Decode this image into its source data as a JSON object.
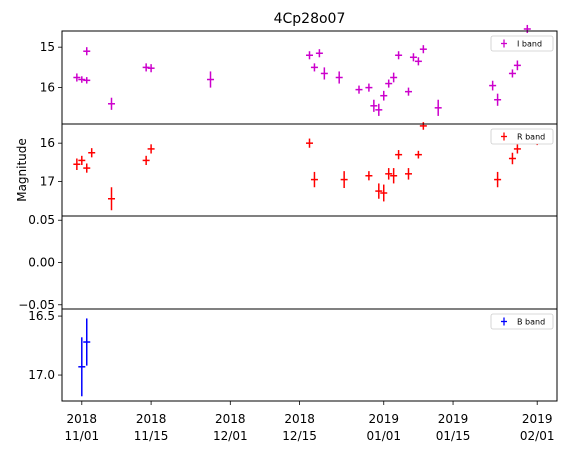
{
  "chart_data": {
    "type": "scatter",
    "title": "4Cp28o07",
    "ylabel": "Magnitude",
    "x_tick_labels": [
      {
        "date": "2018-11-01",
        "line1": "2018",
        "line2": "11/01"
      },
      {
        "date": "2018-11-15",
        "line1": "2018",
        "line2": "11/15"
      },
      {
        "date": "2018-12-01",
        "line1": "2018",
        "line2": "12/01"
      },
      {
        "date": "2018-12-15",
        "line1": "2018",
        "line2": "12/15"
      },
      {
        "date": "2019-01-01",
        "line1": "2019",
        "line2": "01/01"
      },
      {
        "date": "2019-01-15",
        "line1": "2019",
        "line2": "01/15"
      },
      {
        "date": "2019-02-01",
        "line1": "2019",
        "line2": "02/01"
      }
    ],
    "xlim": [
      "2018-10-28",
      "2019-02-05"
    ],
    "panels": [
      {
        "name": "I band",
        "color": "#cc00cc",
        "ylim": [
          16.9,
          14.6
        ],
        "inverted": true,
        "y_ticks": [
          15,
          16
        ],
        "y_tick_labels": [
          "15",
          "16"
        ],
        "legend": "upper right",
        "points": [
          {
            "x": "2018-10-31",
            "y": 15.75,
            "yerr": 0.1
          },
          {
            "x": "2018-11-01",
            "y": 15.8,
            "yerr": 0.08
          },
          {
            "x": "2018-11-02",
            "y": 15.82,
            "yerr": 0.08
          },
          {
            "x": "2018-11-02",
            "y": 15.1,
            "yerr": 0.1
          },
          {
            "x": "2018-11-07",
            "y": 16.4,
            "yerr": 0.15
          },
          {
            "x": "2018-11-14",
            "y": 15.5,
            "yerr": 0.1
          },
          {
            "x": "2018-11-15",
            "y": 15.52,
            "yerr": 0.1
          },
          {
            "x": "2018-11-27",
            "y": 15.8,
            "yerr": 0.2
          },
          {
            "x": "2018-12-17",
            "y": 15.2,
            "yerr": 0.1
          },
          {
            "x": "2018-12-18",
            "y": 15.5,
            "yerr": 0.1
          },
          {
            "x": "2018-12-19",
            "y": 15.15,
            "yerr": 0.1
          },
          {
            "x": "2018-12-20",
            "y": 15.65,
            "yerr": 0.15
          },
          {
            "x": "2018-12-23",
            "y": 15.75,
            "yerr": 0.15
          },
          {
            "x": "2018-12-27",
            "y": 16.05,
            "yerr": 0.1
          },
          {
            "x": "2018-12-29",
            "y": 16.0,
            "yerr": 0.1
          },
          {
            "x": "2018-12-30",
            "y": 16.45,
            "yerr": 0.15
          },
          {
            "x": "2018-12-31",
            "y": 16.55,
            "yerr": 0.15
          },
          {
            "x": "2019-01-01",
            "y": 16.2,
            "yerr": 0.12
          },
          {
            "x": "2019-01-02",
            "y": 15.9,
            "yerr": 0.1
          },
          {
            "x": "2019-01-03",
            "y": 15.75,
            "yerr": 0.12
          },
          {
            "x": "2019-01-04",
            "y": 15.2,
            "yerr": 0.1
          },
          {
            "x": "2019-01-06",
            "y": 16.1,
            "yerr": 0.1
          },
          {
            "x": "2019-01-07",
            "y": 15.25,
            "yerr": 0.1
          },
          {
            "x": "2019-01-08",
            "y": 15.35,
            "yerr": 0.1
          },
          {
            "x": "2019-01-09",
            "y": 15.05,
            "yerr": 0.1
          },
          {
            "x": "2019-01-12",
            "y": 16.5,
            "yerr": 0.2
          },
          {
            "x": "2019-01-23",
            "y": 15.95,
            "yerr": 0.12
          },
          {
            "x": "2019-01-24",
            "y": 16.3,
            "yerr": 0.15
          },
          {
            "x": "2019-01-27",
            "y": 15.65,
            "yerr": 0.1
          },
          {
            "x": "2019-01-28",
            "y": 15.45,
            "yerr": 0.12
          },
          {
            "x": "2019-01-30",
            "y": 14.55,
            "yerr": 0.1
          },
          {
            "x": "2019-02-01",
            "y": 14.9,
            "yerr": 0.12
          }
        ]
      },
      {
        "name": "R band",
        "color": "#ff0000",
        "ylim": [
          17.9,
          15.5
        ],
        "inverted": true,
        "y_ticks": [
          16,
          17
        ],
        "y_tick_labels": [
          "16",
          "17"
        ],
        "legend": "upper right",
        "points": [
          {
            "x": "2018-10-31",
            "y": 16.55,
            "yerr": 0.15
          },
          {
            "x": "2018-11-01",
            "y": 16.45,
            "yerr": 0.12
          },
          {
            "x": "2018-11-02",
            "y": 16.65,
            "yerr": 0.12
          },
          {
            "x": "2018-11-03",
            "y": 16.25,
            "yerr": 0.12
          },
          {
            "x": "2018-11-07",
            "y": 17.45,
            "yerr": 0.3
          },
          {
            "x": "2018-11-14",
            "y": 16.45,
            "yerr": 0.12
          },
          {
            "x": "2018-11-15",
            "y": 16.15,
            "yerr": 0.12
          },
          {
            "x": "2018-12-17",
            "y": 16.0,
            "yerr": 0.12
          },
          {
            "x": "2018-12-18",
            "y": 16.95,
            "yerr": 0.2
          },
          {
            "x": "2018-12-24",
            "y": 16.95,
            "yerr": 0.22
          },
          {
            "x": "2018-12-29",
            "y": 16.85,
            "yerr": 0.12
          },
          {
            "x": "2018-12-31",
            "y": 17.25,
            "yerr": 0.2
          },
          {
            "x": "2019-01-01",
            "y": 17.3,
            "yerr": 0.22
          },
          {
            "x": "2019-01-02",
            "y": 16.8,
            "yerr": 0.15
          },
          {
            "x": "2019-01-03",
            "y": 16.85,
            "yerr": 0.2
          },
          {
            "x": "2019-01-04",
            "y": 16.3,
            "yerr": 0.12
          },
          {
            "x": "2019-01-06",
            "y": 16.8,
            "yerr": 0.15
          },
          {
            "x": "2019-01-08",
            "y": 16.3,
            "yerr": 0.1
          },
          {
            "x": "2019-01-09",
            "y": 15.55,
            "yerr": 0.1
          },
          {
            "x": "2019-01-24",
            "y": 16.95,
            "yerr": 0.2
          },
          {
            "x": "2019-01-27",
            "y": 16.4,
            "yerr": 0.15
          },
          {
            "x": "2019-01-28",
            "y": 16.15,
            "yerr": 0.12
          },
          {
            "x": "2019-02-01",
            "y": 15.95,
            "yerr": 0.1
          }
        ]
      },
      {
        "name": "",
        "color": "#000000",
        "ylim": [
          -0.055,
          0.055
        ],
        "inverted": false,
        "y_ticks": [
          0.05,
          0.0,
          -0.05
        ],
        "y_tick_labels": [
          "0.05",
          "0.00",
          "−0.05"
        ],
        "legend": "none",
        "points": []
      },
      {
        "name": "B band",
        "color": "#0000ff",
        "ylim": [
          17.22,
          16.44
        ],
        "inverted": true,
        "y_ticks": [
          16.5,
          17.0
        ],
        "y_tick_labels": [
          "16.5",
          "17.0"
        ],
        "legend": "upper right",
        "points": [
          {
            "x": "2018-11-01",
            "y": 16.93,
            "yerr": 0.25
          },
          {
            "x": "2018-11-02",
            "y": 16.72,
            "yerr": 0.2
          }
        ]
      }
    ]
  }
}
